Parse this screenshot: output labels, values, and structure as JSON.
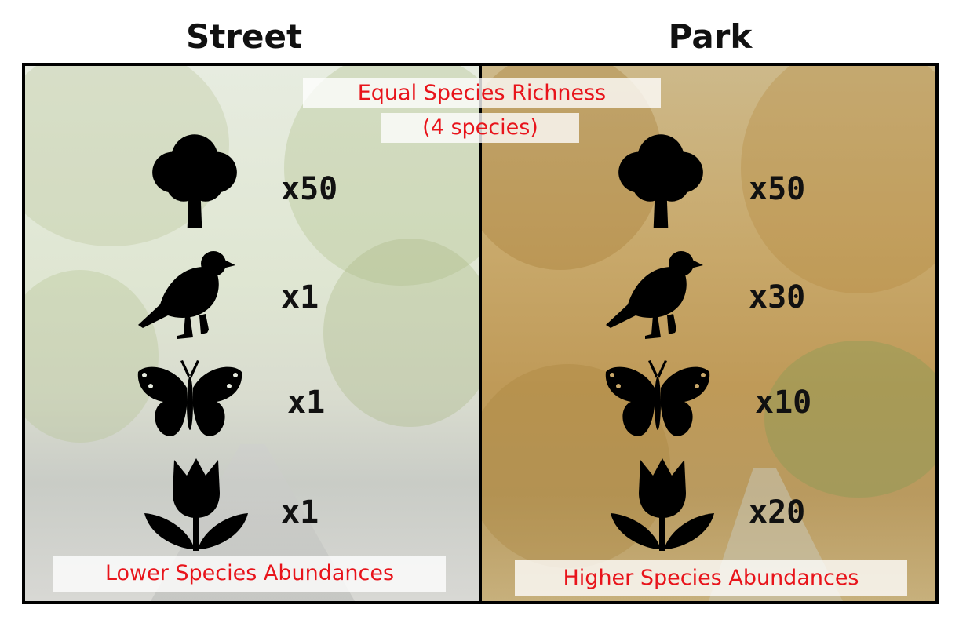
{
  "titles": {
    "left": "Street",
    "right": "Park"
  },
  "top_caption": {
    "line1": "Equal Species Richness",
    "line2": "(4 species)"
  },
  "street": {
    "counts": {
      "tree": "x50",
      "bird": "x1",
      "butterfly": "x1",
      "flower": "x1"
    },
    "caption": "Lower Species Abundances"
  },
  "park": {
    "counts": {
      "tree": "x50",
      "bird": "x30",
      "butterfly": "x10",
      "flower": "x20"
    },
    "caption": "Higher Species Abundances"
  },
  "icons": [
    "tree-icon",
    "bird-icon",
    "butterfly-icon",
    "flower-icon"
  ],
  "colors": {
    "caption_text": "#e8141b",
    "icon_fill": "#000000",
    "frame": "#000000"
  }
}
